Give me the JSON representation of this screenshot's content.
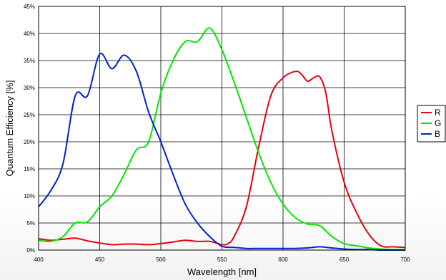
{
  "chart_data": {
    "type": "line",
    "title": "",
    "xlabel": "Wavelength [nm]",
    "ylabel": "Quantum Efficiency [%]",
    "xlim": [
      400,
      700
    ],
    "ylim": [
      0,
      45
    ],
    "x_ticks": [
      400,
      450,
      500,
      550,
      600,
      650,
      700
    ],
    "x_tick_labels": [
      "400",
      "450",
      "500",
      "550",
      "600",
      "650",
      "700"
    ],
    "y_ticks": [
      0,
      5,
      10,
      15,
      20,
      25,
      30,
      35,
      40,
      45
    ],
    "y_tick_labels": [
      "0%",
      "5%",
      "10%",
      "15%",
      "20%",
      "25%",
      "30%",
      "35%",
      "40%",
      "45%"
    ],
    "grid": true,
    "legend_position": "right",
    "series": [
      {
        "name": "R",
        "color": "#e8000b",
        "points": [
          [
            400,
            2.1
          ],
          [
            410,
            1.8
          ],
          [
            420,
            2.0
          ],
          [
            430,
            2.2
          ],
          [
            440,
            1.7
          ],
          [
            450,
            1.3
          ],
          [
            460,
            1.0
          ],
          [
            470,
            1.1
          ],
          [
            480,
            1.1
          ],
          [
            490,
            1.0
          ],
          [
            500,
            1.2
          ],
          [
            510,
            1.5
          ],
          [
            520,
            1.8
          ],
          [
            530,
            1.6
          ],
          [
            540,
            1.6
          ],
          [
            550,
            1.0
          ],
          [
            555,
            1.2
          ],
          [
            560,
            2.5
          ],
          [
            570,
            8.0
          ],
          [
            580,
            19.0
          ],
          [
            590,
            28.5
          ],
          [
            600,
            31.8
          ],
          [
            610,
            33.0
          ],
          [
            615,
            32.5
          ],
          [
            620,
            31.2
          ],
          [
            625,
            31.8
          ],
          [
            630,
            32.0
          ],
          [
            635,
            29.0
          ],
          [
            640,
            22.0
          ],
          [
            650,
            12.5
          ],
          [
            660,
            7.0
          ],
          [
            670,
            3.0
          ],
          [
            680,
            0.8
          ],
          [
            690,
            0.6
          ],
          [
            700,
            0.5
          ]
        ]
      },
      {
        "name": "G",
        "color": "#00e800",
        "points": [
          [
            400,
            1.8
          ],
          [
            410,
            1.6
          ],
          [
            420,
            2.5
          ],
          [
            430,
            5.0
          ],
          [
            440,
            5.2
          ],
          [
            450,
            8.0
          ],
          [
            460,
            10.0
          ],
          [
            470,
            14.0
          ],
          [
            480,
            18.5
          ],
          [
            490,
            20.0
          ],
          [
            500,
            29.0
          ],
          [
            510,
            35.0
          ],
          [
            520,
            38.5
          ],
          [
            530,
            38.5
          ],
          [
            540,
            41.0
          ],
          [
            550,
            37.0
          ],
          [
            560,
            31.0
          ],
          [
            570,
            24.5
          ],
          [
            580,
            18.0
          ],
          [
            590,
            12.5
          ],
          [
            600,
            8.5
          ],
          [
            610,
            6.0
          ],
          [
            620,
            4.8
          ],
          [
            630,
            4.5
          ],
          [
            640,
            2.5
          ],
          [
            650,
            1.2
          ],
          [
            660,
            0.8
          ],
          [
            670,
            0.4
          ],
          [
            680,
            0.2
          ],
          [
            690,
            0.1
          ],
          [
            700,
            0.1
          ]
        ]
      },
      {
        "name": "B",
        "color": "#0022cc",
        "points": [
          [
            400,
            8.0
          ],
          [
            410,
            11.0
          ],
          [
            420,
            16.0
          ],
          [
            430,
            28.5
          ],
          [
            440,
            28.5
          ],
          [
            450,
            36.2
          ],
          [
            460,
            33.5
          ],
          [
            470,
            36.0
          ],
          [
            480,
            33.0
          ],
          [
            490,
            25.5
          ],
          [
            500,
            20.0
          ],
          [
            510,
            14.0
          ],
          [
            520,
            8.5
          ],
          [
            530,
            5.0
          ],
          [
            540,
            2.5
          ],
          [
            550,
            0.7
          ],
          [
            560,
            0.5
          ],
          [
            570,
            0.3
          ],
          [
            580,
            0.3
          ],
          [
            590,
            0.3
          ],
          [
            600,
            0.3
          ],
          [
            610,
            0.3
          ],
          [
            620,
            0.4
          ],
          [
            630,
            0.6
          ],
          [
            640,
            0.4
          ],
          [
            650,
            0.2
          ],
          [
            660,
            0.1
          ],
          [
            670,
            0.1
          ],
          [
            680,
            0.0
          ],
          [
            690,
            0.0
          ],
          [
            700,
            0.0
          ]
        ]
      }
    ]
  }
}
